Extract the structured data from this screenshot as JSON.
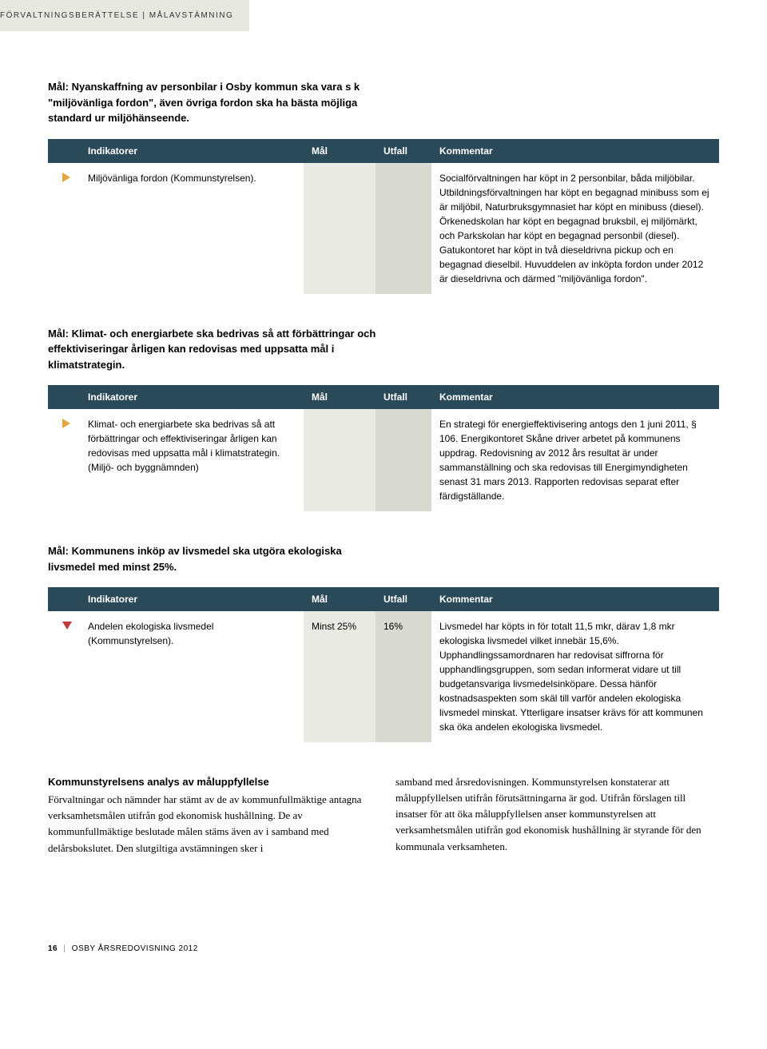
{
  "header": {
    "breadcrumb": "FÖRVALTNINGSBERÄTTELSE | MÅLAVSTÄMNING"
  },
  "colors": {
    "header_bg": "#2a4a5a",
    "header_text": "#ffffff",
    "strip_bg": "#e8e8e2",
    "mal_bg": "#e9eae4",
    "utfall_bg": "#d9dad1",
    "arrow_orange": "#e9a43b",
    "arrow_red": "#c43a3a"
  },
  "table_headers": {
    "indikatorer": "Indikatorer",
    "mal": "Mål",
    "utfall": "Utfall",
    "kommentar": "Kommentar"
  },
  "sections": [
    {
      "goal": "Mål: Nyanskaffning av personbilar i Osby kommun ska vara s k \"miljövänliga fordon\", även övriga fordon ska ha bästa möjliga standard ur miljöhänseende.",
      "icon": "right",
      "indicator": "Miljövänliga fordon (Kommunstyrelsen).",
      "mal": "",
      "utfall": "",
      "comment": "Socialförvaltningen har köpt in 2 personbilar, båda miljöbilar. Utbildningsförvaltningen har köpt en begagnad minibuss som ej är miljöbil, Naturbruksgymnasiet har köpt en minibuss (diesel). Örkenedskolan har köpt en begagnad bruksbil, ej miljömärkt, och Parkskolan har köpt en begagnad personbil (diesel). Gatukontoret har köpt in två dieseldrivna pickup och en begagnad dieselbil. Huvuddelen av inköpta fordon under 2012 är dieseldrivna och därmed \"miljövänliga fordon\"."
    },
    {
      "goal": "Mål: Klimat- och energiarbete ska bedrivas så att förbättringar och effektiviseringar årligen kan redovisas med uppsatta mål i klimatstrategin.",
      "icon": "right",
      "indicator": "Klimat- och energiarbete ska bedrivas så att förbättringar och effektiviseringar årligen kan redovisas med uppsatta mål i klimatstrategin. (Miljö- och byggnämnden)",
      "mal": "",
      "utfall": "",
      "comment": "En strategi för energieffektivisering antogs den 1 juni 2011, § 106. Energikontoret Skåne driver arbetet på kommunens uppdrag. Redovisning av 2012 års resultat är under sammanställning och ska redovisas till Energimyndigheten senast 31 mars 2013. Rapporten redovisas separat efter färdigställande."
    },
    {
      "goal": "Mål: Kommunens inköp av livsmedel ska utgöra ekologiska livsmedel med minst 25%.",
      "icon": "down",
      "indicator": "Andelen ekologiska livsmedel (Kommunstyrelsen).",
      "mal": "Minst 25%",
      "utfall": "16%",
      "comment": "Livsmedel har köpts in för totalt 11,5 mkr, därav 1,8 mkr ekologiska livsmedel vilket innebär 15,6%. Upphandlingssamordnaren har redovisat siffrorna för upphandlingsgruppen, som sedan informerat vidare ut till budgetansvariga livsmedelsinköpare. Dessa hänför kostnadsaspekten som skäl till varför andelen ekologiska livsmedel minskat. Ytterligare insatser krävs för att kommunen ska öka andelen ekologiska livsmedel."
    }
  ],
  "analysis": {
    "heading": "Kommunstyrelsens analys av måluppfyllelse",
    "col1": "Förvaltningar och nämnder har stämt av de av kommunfullmäktige antagna verksamhetsmålen utifrån god ekonomisk hushållning. De av kommunfullmäktige beslutade målen stäms även av i samband med delårsbokslutet. Den slutgiltiga avstämningen sker i",
    "col2": "samband med årsredovisningen. Kommunstyrelsen konstaterar att måluppfyllelsen utifrån förutsättningarna är god. Utifrån förslagen till insatser för att öka måluppfyllelsen anser kommunstyrelsen att verksamhetsmålen utifrån god ekonomisk hushållning är styrande för den kommunala verksamheten."
  },
  "footer": {
    "page_number": "16",
    "doc_title": "OSBY ÅRSREDOVISNING 2012"
  }
}
